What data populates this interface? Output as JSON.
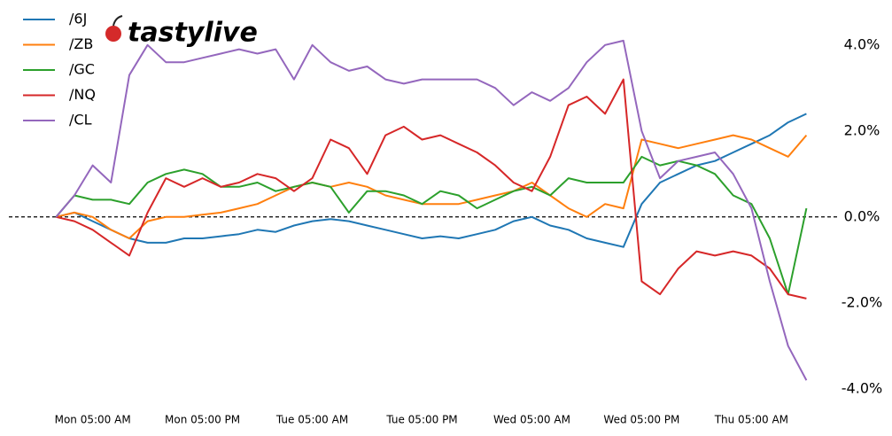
{
  "chart_data": {
    "type": "line",
    "logo": "tastylive",
    "x": [
      1,
      3,
      5,
      7,
      9,
      11,
      13,
      15,
      17,
      19,
      21,
      23,
      25,
      27,
      29,
      31,
      33,
      35,
      37,
      39,
      41,
      43,
      45,
      47,
      49,
      51,
      53,
      55,
      57,
      59,
      61,
      63,
      65,
      67,
      69,
      71,
      73,
      75,
      77,
      79,
      81,
      83
    ],
    "xlim": [
      0,
      88
    ],
    "xticks": [
      {
        "value": 5,
        "label": "Mon 05:00 AM"
      },
      {
        "value": 17,
        "label": "Mon 05:00 PM"
      },
      {
        "value": 29,
        "label": "Tue 05:00 AM"
      },
      {
        "value": 41,
        "label": "Tue 05:00 PM"
      },
      {
        "value": 53,
        "label": "Wed 05:00 AM"
      },
      {
        "value": 65,
        "label": "Wed 05:00 PM"
      },
      {
        "value": 77,
        "label": "Thu 05:00 AM"
      }
    ],
    "ylim": [
      -4.5,
      4.8
    ],
    "yticks": [
      {
        "value": -4,
        "label": "-4.0%"
      },
      {
        "value": -2,
        "label": "-2.0%"
      },
      {
        "value": 0,
        "label": "0.0%"
      },
      {
        "value": 2,
        "label": "2.0%"
      },
      {
        "value": 4,
        "label": "4.0%"
      }
    ],
    "reference_line": 0,
    "legend": "upper left",
    "series": [
      {
        "name": "/6J",
        "color": "#1f77b4",
        "values": [
          0,
          0.1,
          -0.1,
          -0.3,
          -0.5,
          -0.6,
          -0.6,
          -0.5,
          -0.5,
          -0.45,
          -0.4,
          -0.3,
          -0.35,
          -0.2,
          -0.1,
          -0.05,
          -0.1,
          -0.2,
          -0.3,
          -0.4,
          -0.5,
          -0.45,
          -0.5,
          -0.4,
          -0.3,
          -0.1,
          0,
          -0.2,
          -0.3,
          -0.5,
          -0.6,
          -0.7,
          0.3,
          0.8,
          1.0,
          1.2,
          1.3,
          1.5,
          1.7,
          1.9,
          2.2,
          2.4
        ]
      },
      {
        "name": "/ZB",
        "color": "#ff7f0e",
        "values": [
          0,
          0.1,
          0,
          -0.3,
          -0.5,
          -0.1,
          0,
          0,
          0.05,
          0.1,
          0.2,
          0.3,
          0.5,
          0.7,
          0.8,
          0.7,
          0.8,
          0.7,
          0.5,
          0.4,
          0.3,
          0.3,
          0.3,
          0.4,
          0.5,
          0.6,
          0.8,
          0.5,
          0.2,
          0,
          0.3,
          0.2,
          1.8,
          1.7,
          1.6,
          1.7,
          1.8,
          1.9,
          1.8,
          1.6,
          1.4,
          1.9
        ]
      },
      {
        "name": "/GC",
        "color": "#2ca02c",
        "values": [
          0,
          0.5,
          0.4,
          0.4,
          0.3,
          0.8,
          1.0,
          1.1,
          1.0,
          0.7,
          0.7,
          0.8,
          0.6,
          0.7,
          0.8,
          0.7,
          0.1,
          0.6,
          0.6,
          0.5,
          0.3,
          0.6,
          0.5,
          0.2,
          0.4,
          0.6,
          0.7,
          0.5,
          0.9,
          0.8,
          0.8,
          0.8,
          1.4,
          1.2,
          1.3,
          1.2,
          1.0,
          0.5,
          0.3,
          -0.5,
          -1.8,
          0.2
        ]
      },
      {
        "name": "/NQ",
        "color": "#d62728",
        "values": [
          0,
          -0.1,
          -0.3,
          -0.6,
          -0.9,
          0.1,
          0.9,
          0.7,
          0.9,
          0.7,
          0.8,
          1.0,
          0.9,
          0.6,
          0.9,
          1.8,
          1.6,
          1.0,
          1.9,
          2.1,
          1.8,
          1.9,
          1.7,
          1.5,
          1.2,
          0.8,
          0.6,
          1.4,
          2.6,
          2.8,
          2.4,
          3.2,
          -1.5,
          -1.8,
          -1.2,
          -0.8,
          -0.9,
          -0.8,
          -0.9,
          -1.2,
          -1.8,
          -1.9
        ]
      },
      {
        "name": "/CL",
        "color": "#9467bd",
        "values": [
          0,
          0.5,
          1.2,
          0.8,
          3.3,
          4.0,
          3.6,
          3.6,
          3.7,
          3.8,
          3.9,
          3.8,
          3.9,
          3.2,
          4.0,
          3.6,
          3.4,
          3.5,
          3.2,
          3.1,
          3.2,
          3.2,
          3.2,
          3.2,
          3.0,
          2.6,
          2.9,
          2.7,
          3.0,
          3.6,
          4.0,
          4.1,
          2.0,
          0.9,
          1.3,
          1.4,
          1.5,
          1.0,
          0.2,
          -1.5,
          -3.0,
          -3.8
        ]
      }
    ]
  }
}
